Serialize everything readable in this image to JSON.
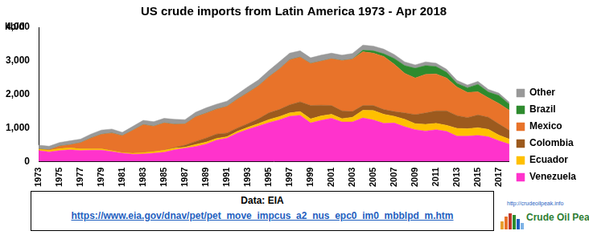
{
  "chart_data": {
    "type": "area",
    "title": "US crude imports from Latin America 1973 - Apr 2018",
    "y_label": "kb/d",
    "source": "Data: EIA",
    "source_url": "https://www.eia.gov/dnav/pet/pet_move_impcus_a2_nus_epc0_im0_mbblpd_m.htm",
    "logo_url": "http://crudeoilpeak.info",
    "logo_text": "Crude Oil Peak",
    "categories": [
      "1973",
      null,
      "1975",
      null,
      "1977",
      null,
      "1979",
      null,
      "1981",
      null,
      "1983",
      null,
      "1985",
      null,
      "1987",
      null,
      "1989",
      null,
      "1991",
      null,
      "1993",
      null,
      "1995",
      null,
      "1997",
      null,
      "1999",
      null,
      "2001",
      null,
      "2003",
      null,
      "2005",
      null,
      "2007",
      null,
      "2009",
      null,
      "2011",
      null,
      "2013",
      null,
      "2015",
      null,
      "2017",
      null
    ],
    "series": [
      {
        "name": "Venezuela",
        "color": "#ff33cc",
        "values": [
          330,
          290,
          330,
          350,
          330,
          340,
          340,
          300,
          250,
          220,
          230,
          250,
          280,
          350,
          400,
          450,
          520,
          640,
          700,
          850,
          960,
          1060,
          1160,
          1240,
          1350,
          1380,
          1150,
          1230,
          1290,
          1180,
          1180,
          1300,
          1240,
          1140,
          1150,
          1040,
          950,
          910,
          950,
          900,
          760,
          760,
          780,
          740,
          620,
          520
        ]
      },
      {
        "name": "Ecuador",
        "color": "#ffc000",
        "values": [
          40,
          50,
          60,
          60,
          50,
          40,
          40,
          30,
          20,
          30,
          40,
          50,
          60,
          50,
          30,
          60,
          60,
          50,
          40,
          50,
          60,
          70,
          90,
          100,
          100,
          110,
          120,
          130,
          120,
          100,
          140,
          230,
          280,
          270,
          200,
          220,
          180,
          200,
          190,
          180,
          230,
          220,
          230,
          220,
          170,
          150
        ]
      },
      {
        "name": "Colombia",
        "color": "#9c5a1e",
        "values": [
          0,
          0,
          0,
          0,
          0,
          0,
          0,
          0,
          0,
          0,
          0,
          0,
          0,
          20,
          60,
          90,
          120,
          130,
          110,
          100,
          110,
          140,
          200,
          210,
          240,
          290,
          400,
          320,
          260,
          230,
          170,
          140,
          150,
          140,
          140,
          190,
          270,
          340,
          370,
          430,
          380,
          330,
          380,
          360,
          330,
          260
        ]
      },
      {
        "name": "Mexico",
        "color": "#e8732a",
        "values": [
          0,
          10,
          70,
          90,
          180,
          320,
          430,
          520,
          500,
          680,
          830,
          750,
          810,
          690,
          630,
          730,
          740,
          740,
          790,
          860,
          920,
          980,
          1070,
          1200,
          1340,
          1330,
          1250,
          1310,
          1390,
          1500,
          1560,
          1600,
          1560,
          1580,
          1410,
          1180,
          1090,
          1150,
          1100,
          980,
          850,
          750,
          690,
          580,
          610,
          600
        ]
      },
      {
        "name": "Brazil",
        "color": "#2e8b2e",
        "values": [
          0,
          0,
          0,
          0,
          0,
          0,
          0,
          0,
          0,
          0,
          0,
          0,
          0,
          0,
          0,
          0,
          0,
          0,
          0,
          0,
          0,
          0,
          0,
          0,
          0,
          0,
          0,
          0,
          0,
          0,
          0,
          50,
          70,
          80,
          170,
          230,
          290,
          260,
          220,
          170,
          110,
          140,
          220,
          170,
          240,
          180
        ]
      },
      {
        "name": "Other",
        "color": "#999999",
        "values": [
          120,
          110,
          110,
          120,
          110,
          120,
          130,
          120,
          100,
          120,
          130,
          140,
          140,
          150,
          130,
          140,
          160,
          150,
          160,
          150,
          180,
          180,
          190,
          220,
          200,
          190,
          170,
          180,
          170,
          160,
          170,
          150,
          140,
          140,
          120,
          110,
          100,
          110,
          100,
          90,
          90,
          80,
          90,
          80,
          70,
          60
        ]
      }
    ],
    "ylim": [
      0,
      4000
    ],
    "yticks": [
      0,
      {
        "value": 1000,
        "label": "1,000"
      },
      {
        "value": 2000,
        "label": "2,000"
      },
      {
        "value": 3000,
        "label": "3,000"
      },
      {
        "value": 4000,
        "label": "4,000"
      }
    ],
    "stacked": true,
    "legend": "right",
    "grid": false
  }
}
